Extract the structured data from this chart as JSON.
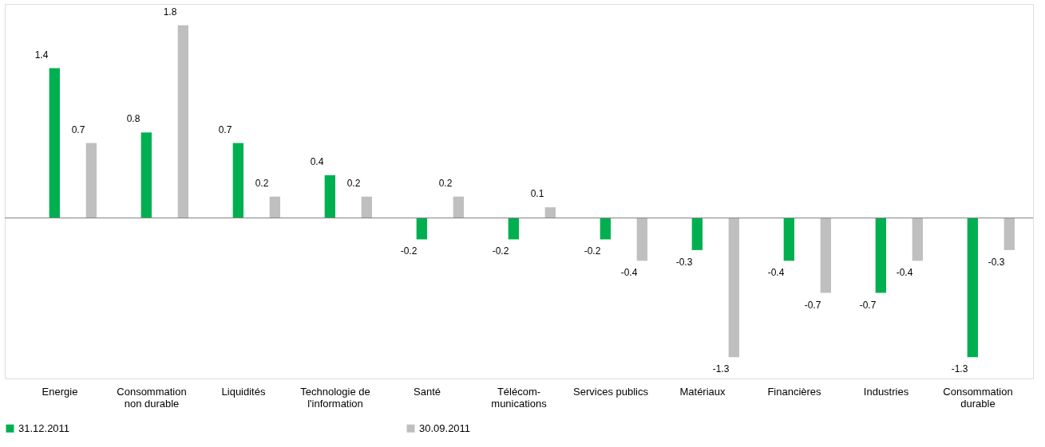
{
  "chart_data": {
    "type": "bar",
    "categories": [
      "Energie",
      "Consommation\nnon durable",
      "Liquidités",
      "Technologie de\nl'information",
      "Santé",
      "Télécom-\nmunications",
      "Services publics",
      "Matériaux",
      "Financières",
      "Industries",
      "Consommation\ndurable"
    ],
    "series": [
      {
        "name": "31.12.2011",
        "color": "#00b050",
        "values": [
          1.4,
          0.8,
          0.7,
          0.4,
          -0.2,
          -0.2,
          -0.2,
          -0.3,
          -0.4,
          -0.7,
          -1.3
        ]
      },
      {
        "name": "30.09.2011",
        "color": "#bfbfbf",
        "values": [
          0.7,
          1.8,
          0.2,
          0.2,
          0.2,
          0.1,
          -0.4,
          -1.3,
          -0.7,
          -0.4,
          -0.3
        ]
      }
    ],
    "data_labels": true,
    "legend": "bottom",
    "grid": false
  }
}
